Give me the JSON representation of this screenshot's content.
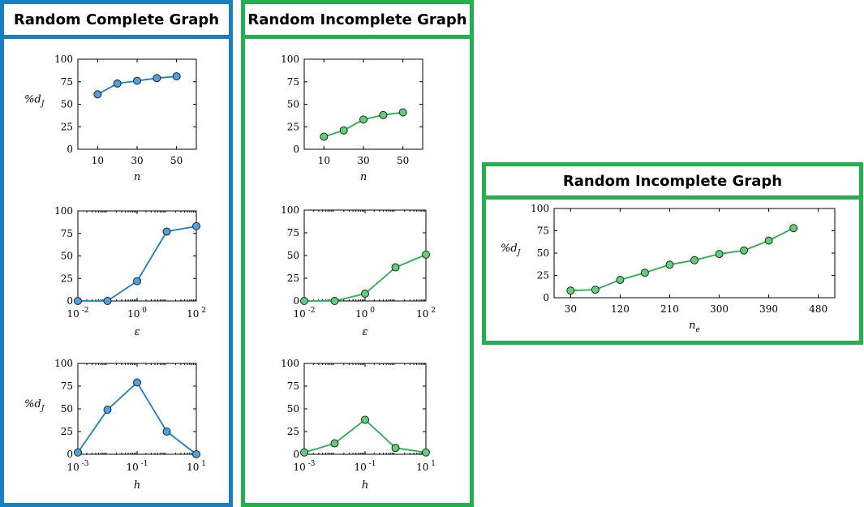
{
  "panels": {
    "left_title": "Random Complete Graph",
    "middle_title": "Random Incomplete Graph",
    "right_title": "Random Incomplete Graph"
  },
  "colors": {
    "blue_border": "#1a7fc1",
    "blue_marker": "#4aa3df",
    "green_border": "#22b14c",
    "green_marker": "#5fd07a",
    "line_blue": "#1a7fc1",
    "line_green": "#22b14c"
  },
  "chart_data": [
    {
      "id": "complete-n",
      "type": "line",
      "scale": "linear",
      "x": [
        10,
        20,
        30,
        40,
        50
      ],
      "y": [
        61,
        73,
        76,
        79,
        81
      ],
      "xlim": [
        0,
        60
      ],
      "ylim": [
        0,
        100
      ],
      "xticks": [
        10,
        30,
        50
      ],
      "xtick_labels": [
        "10",
        "30",
        "50"
      ],
      "yticks": [
        0,
        25,
        50,
        75,
        100
      ],
      "ytick_labels": [
        "0",
        "25",
        "50",
        "75",
        "100"
      ],
      "xlabel": "n",
      "ylabel": "%d_J"
    },
    {
      "id": "complete-eps",
      "type": "line",
      "scale": "log10",
      "x": [
        0.01,
        0.1,
        1,
        10,
        100
      ],
      "y": [
        0,
        0,
        22,
        77,
        83
      ],
      "xlim": [
        0.01,
        100
      ],
      "ylim": [
        0,
        100
      ],
      "xticks": [
        0.01,
        1,
        100
      ],
      "xtick_labels": [
        {
          "base": "10",
          "exp": "-2"
        },
        {
          "base": "10",
          "exp": "0"
        },
        {
          "base": "10",
          "exp": "2"
        }
      ],
      "yticks": [
        0,
        25,
        50,
        75,
        100
      ],
      "ytick_labels": [
        "0",
        "25",
        "50",
        "75",
        "100"
      ],
      "xlabel": "ε",
      "ylabel": ""
    },
    {
      "id": "complete-h",
      "type": "line",
      "scale": "log10",
      "x": [
        0.001,
        0.01,
        0.1,
        1,
        10
      ],
      "y": [
        2,
        49,
        79,
        25,
        0
      ],
      "xlim": [
        0.001,
        10
      ],
      "ylim": [
        0,
        100
      ],
      "xticks": [
        0.001,
        0.1,
        10
      ],
      "xtick_labels": [
        {
          "base": "10",
          "exp": "-3"
        },
        {
          "base": "10",
          "exp": "-1"
        },
        {
          "base": "10",
          "exp": "1"
        }
      ],
      "yticks": [
        0,
        25,
        50,
        75,
        100
      ],
      "ytick_labels": [
        "0",
        "25",
        "50",
        "75",
        "100"
      ],
      "xlabel": "h",
      "ylabel": "%d_J"
    },
    {
      "id": "incomplete-n",
      "type": "line",
      "scale": "linear",
      "x": [
        10,
        20,
        30,
        40,
        50
      ],
      "y": [
        14,
        21,
        33,
        38,
        41
      ],
      "xlim": [
        0,
        60
      ],
      "ylim": [
        0,
        100
      ],
      "xticks": [
        10,
        30,
        50
      ],
      "xtick_labels": [
        "10",
        "30",
        "50"
      ],
      "yticks": [
        0,
        25,
        50,
        75,
        100
      ],
      "ytick_labels": [
        "0",
        "25",
        "50",
        "75",
        "100"
      ],
      "xlabel": "n",
      "ylabel": ""
    },
    {
      "id": "incomplete-eps",
      "type": "line",
      "scale": "log10",
      "x": [
        0.01,
        0.1,
        1,
        10,
        100
      ],
      "y": [
        0,
        0,
        8,
        37,
        51
      ],
      "xlim": [
        0.01,
        100
      ],
      "ylim": [
        0,
        100
      ],
      "xticks": [
        0.01,
        1,
        100
      ],
      "xtick_labels": [
        {
          "base": "10",
          "exp": "-2"
        },
        {
          "base": "10",
          "exp": "0"
        },
        {
          "base": "10",
          "exp": "2"
        }
      ],
      "yticks": [
        0,
        25,
        50,
        75,
        100
      ],
      "ytick_labels": [
        "0",
        "25",
        "50",
        "75",
        "100"
      ],
      "xlabel": "ε",
      "ylabel": ""
    },
    {
      "id": "incomplete-h",
      "type": "line",
      "scale": "log10",
      "x": [
        0.001,
        0.01,
        0.1,
        1,
        10
      ],
      "y": [
        2,
        12,
        38,
        7,
        2
      ],
      "xlim": [
        0.001,
        10
      ],
      "ylim": [
        0,
        100
      ],
      "xticks": [
        0.001,
        0.1,
        10
      ],
      "xtick_labels": [
        {
          "base": "10",
          "exp": "-3"
        },
        {
          "base": "10",
          "exp": "-1"
        },
        {
          "base": "10",
          "exp": "1"
        }
      ],
      "yticks": [
        0,
        25,
        50,
        75,
        100
      ],
      "ytick_labels": [
        "0",
        "25",
        "50",
        "75",
        "100"
      ],
      "xlabel": "h",
      "ylabel": ""
    },
    {
      "id": "incomplete-ne",
      "type": "line",
      "scale": "linear",
      "x": [
        30,
        75,
        120,
        165,
        210,
        255,
        300,
        345,
        390,
        435
      ],
      "y": [
        8,
        9,
        20,
        28,
        37,
        42,
        49,
        53,
        64,
        78
      ],
      "xlim": [
        0,
        510
      ],
      "ylim": [
        0,
        100
      ],
      "xticks": [
        30,
        120,
        210,
        300,
        390,
        480
      ],
      "xtick_labels": [
        "30",
        "120",
        "210",
        "300",
        "390",
        "480"
      ],
      "yticks": [
        0,
        25,
        50,
        75,
        100
      ],
      "ytick_labels": [
        "0",
        "25",
        "50",
        "75",
        "100"
      ],
      "xlabel": "n_e",
      "ylabel": "%d_J"
    }
  ]
}
